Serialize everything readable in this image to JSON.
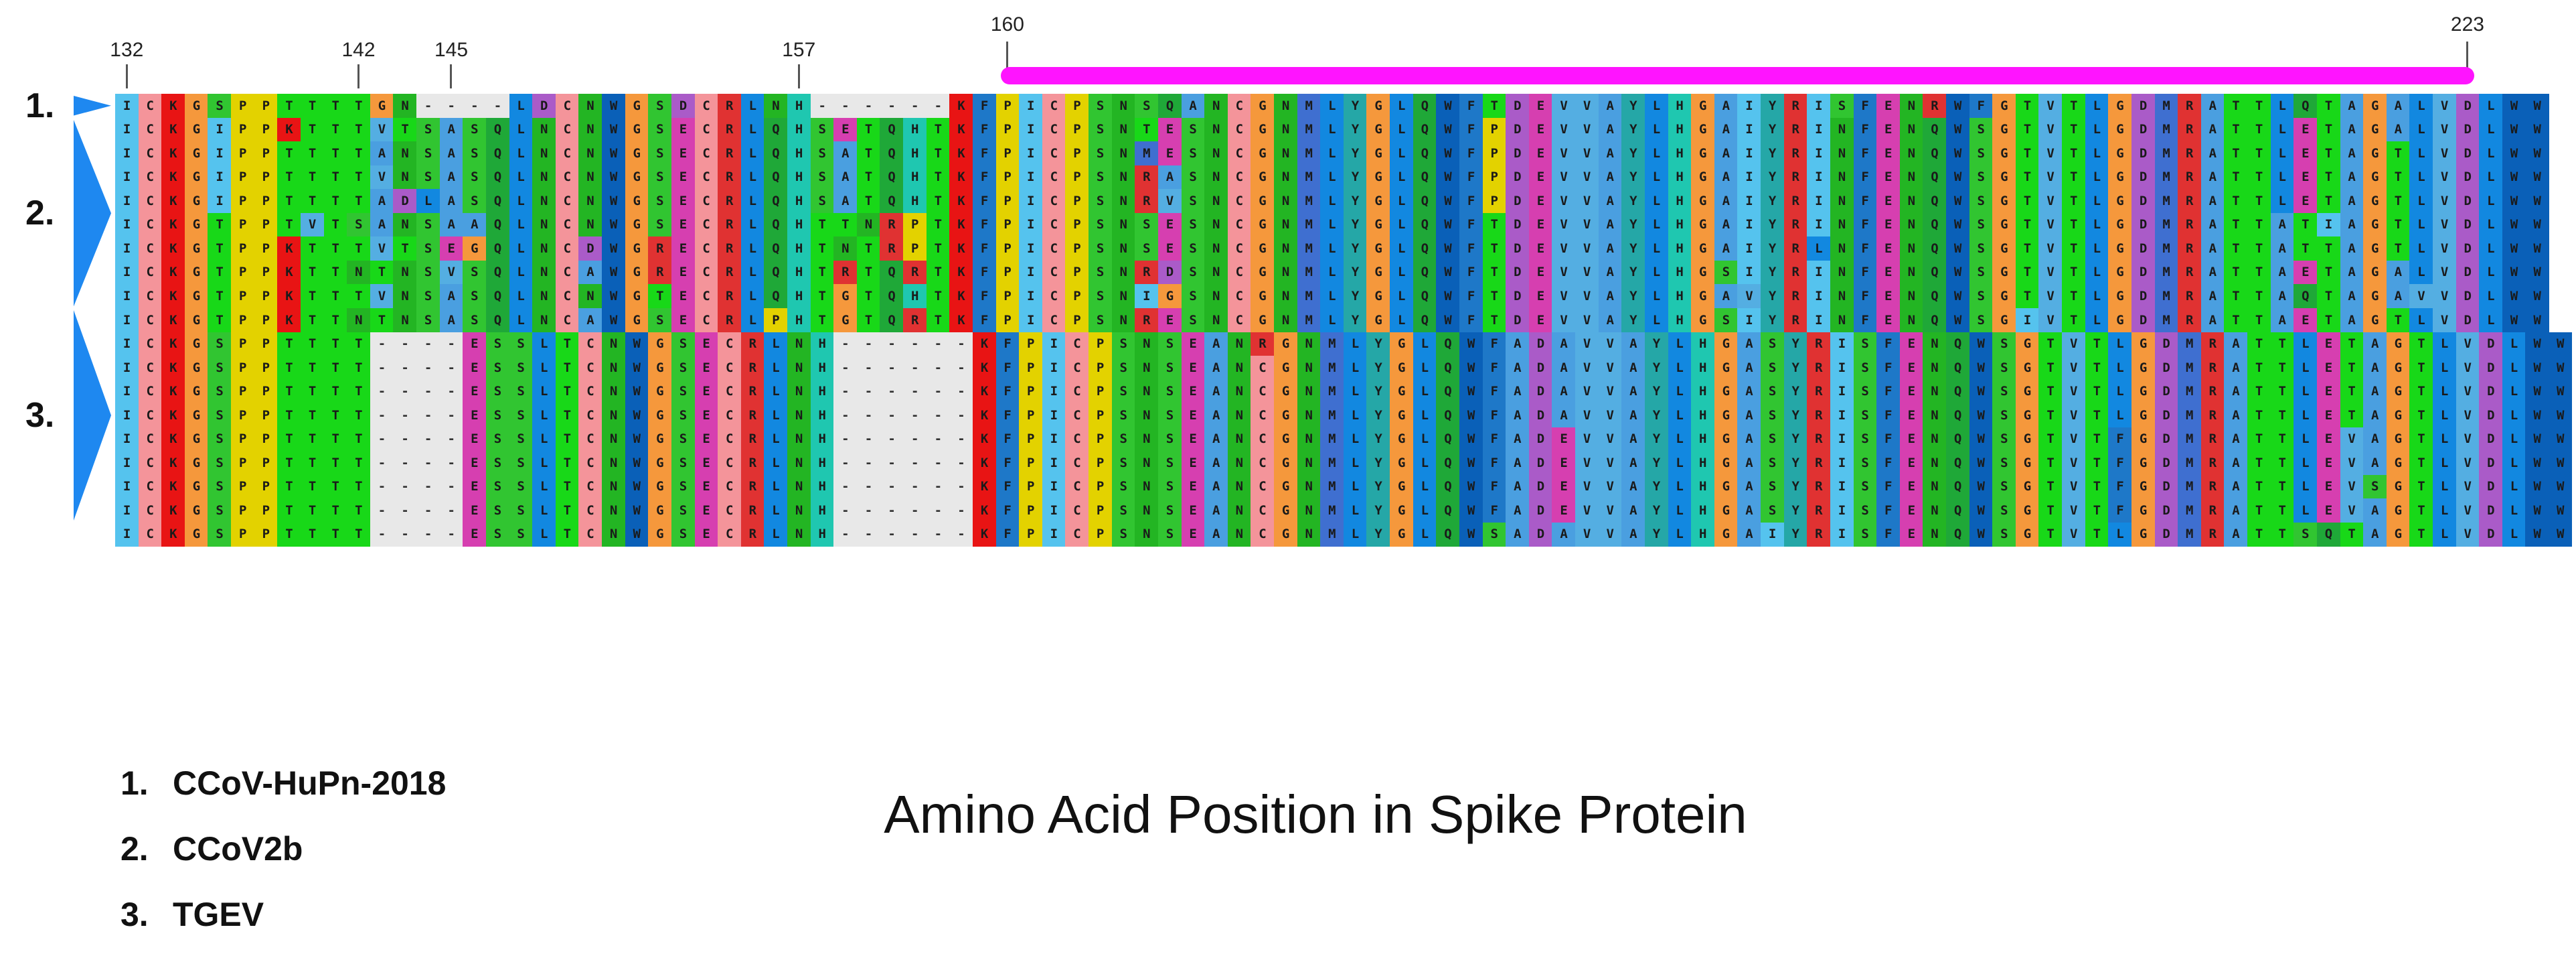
{
  "position_ticks": [
    {
      "pos": 132,
      "label": "132"
    },
    {
      "pos": 142,
      "label": "142"
    },
    {
      "pos": 145,
      "label": "145"
    },
    {
      "pos": 157,
      "label": "157"
    },
    {
      "pos": 160,
      "label": "160"
    },
    {
      "pos": 223,
      "label": "223"
    }
  ],
  "region_bar": {
    "from": 160,
    "to": 223,
    "color": "#ff14ff"
  },
  "groups": [
    {
      "label": "1.",
      "first_row": 0,
      "row_count": 1
    },
    {
      "label": "2.",
      "first_row": 1,
      "row_count": 8
    },
    {
      "label": "3.",
      "first_row": 9,
      "row_count": 9
    }
  ],
  "legend": [
    {
      "num": "1.",
      "name": "CCoV-HuPn-2018"
    },
    {
      "num": "2.",
      "name": "CCoV2b"
    },
    {
      "num": "3.",
      "name": "TGEV"
    }
  ],
  "axis_title": "Amino Acid Position in Spike Protein",
  "alignment_rows": [
    "ICKGSPPTTTTGN----LDCNWGSDCRLNH------KFPICPSNSQANCGNMLYGLQWFTDEVVAYLHGAIYRISFENRWFGTVTLGDMRATTLQTAGALVDLWW",
    "ICKGIPPKTTTVTSASQLNCNWGSECRLQHSETQHTKFPICPSNTESNCGNMLYGLQWFPDEVVAYLHGAIYRINFENQWSGTVTLGDMRATTLETAGALVDLWW",
    "ICKGIPPTTTTANSASQLNCNWGSECRLQHSATQHTKFPICPSNMESNCGNMLYGLQWFPDEVVAYLHGAIYRINFENQWSGTVTLGDMRATTLETAGTLVDLWW",
    "ICKGIPPTTTTVNSASQLNCNWGSECRLQHSATQHTKFPICPSNRASNCGNMLYGLQWFPDEVVAYLHGAIYRINFENQWSGTVTLGDMRATTLETAGTLVDLWW",
    "ICKGIPPTTTTADLASQLNCNWGSECRLQHSATQHTKFPICPSNRVSNCGNMLYGLQWFPDEVVAYLHGAIYRINFENQWSGTVTLGDMRATTLETAGTLVDLWW",
    "ICKGTPPTVTSANSAAQLNCNWGSECRLQHTTNRPTKFPICPSNSESNCGNMLYGLQWFTDEVVAYLHGAIYRINFENQWSGTVTLGDMRATTATIAGTLVDLWW",
    "ICKGTPPKTTTVTSEGQLNCDWGRECRLQHTNTRPTKFPICPSNSESNCGNMLYGLQWFTDEVVAYLHGAIYRLNFENQWSGTVTLGDMRATTATTAGTLVDLWW",
    "ICKGTPPKTTNTNSVSQLNCAWGRECRLQHTRTQRTKFPICPSNRDSNCGNMLYGLQWFTDEVVAYLHGSIYRINFENQWSGTVTLGDMRATTAETAGALVDLWW",
    "ICKGTPPKTTTVNSASQLNCNWGTECRLQHTGTQHTKFPICPSNIGSNCGNMLYGLQWFTDEVVAYLHGAVYRINFENQWSGTVTLGDMRATTAQTAGAVVDLWW",
    "ICKGTPPKTTNTNSASQLNCAWGSECRLPHTGTQRTKFPICPSNRESNCGNMLYGLQWFTDEVVAYLHGSIYRINFENQWSGIVTLGDMRATTAETAGTLVDLWW",
    "ICKGSPPTTTT----ESSLTCNWGSECRLNH------KFPICPSNSEANRGNMLYGLQWFADAVVAYLHGASYRISFENQWSGTVTLGDMRATTLETAGTLVDLWW",
    "ICKGSPPTTTT----ESSLTCNWGSECRLNH------KFPICPSNSEANCGNMLYGLQWFADAVVAYLHGASYRISFENQWSGTVTLGDMRATTLETAGTLVDLWW",
    "ICKGSPPTTTT----ESSLTCNWGSECRLNH------KFPICPSNSEANCGNMLYGLQWFADAVVAYLHGASYRISFENQWSGTVTLGDMRATTLETAGTLVDLWW",
    "ICKGSPPTTTT----ESSLTCNWGSECRLNH------KFPICPSNSEANCGNMLYGLQWFADAVVAYLHGASYRISFENQWSGTVTLGDMRATTLETAGTLVDLWW",
    "ICKGSPPTTTT----ESSLTCNWGSECRLNH------KFPICPSNSEANCGNMLYGLQWFADEVVAYLHGASYRISFENQWSGTVTFGDMRATTLEVAGTLVDLWW",
    "ICKGSPPTTTT----ESSLTCNWGSECRLNH------KFPICPSNSEANCGNMLYGLQWFADEVVAYLHGASYRISFENQWSGTVTFGDMRATTLEVAGTLVDLWW",
    "ICKGSPPTTTT----ESSLTCNWGSECRLNH------KFPICPSNSEANCGNMLYGLQWFADEVVAYLHGASYRISFENQWSGTVTFGDMRATTLEVSGTLVDLWW",
    "ICKGSPPTTTT----ESSLTCNWGSECRLNH------KFPICPSNSEANCGNMLYGLQWFADEVVAYLHGASYRISFENQWSGTVTFGDMRATTLEVAGTLVDLWW",
    "ICKGSPPTTTT----ESSLTCNWGSECRLNH------KFPICPSNSEANCGNMLYGLQWSADAVVAYLHGAIYRISFENQWSGTVTLGDMRATTSQTAGTLVDLWW"
  ],
  "residue_colors": {
    "A": "#4a9fe0",
    "C": "#f4949a",
    "D": "#aa5bc8",
    "E": "#d63fb0",
    "F": "#1e78c8",
    "G": "#f5983c",
    "H": "#1fc7b0",
    "I": "#55c3ee",
    "K": "#e81414",
    "L": "#1288e0",
    "M": "#3f6fd0",
    "N": "#23b523",
    "P": "#e3d200",
    "Q": "#1fa838",
    "R": "#e03232",
    "S": "#31c531",
    "T": "#18d818",
    "V": "#54aee2",
    "W": "#0a60b8",
    "Y": "#25a7a7",
    "-": "#e8e8e8"
  },
  "marker_color": "#1e88f0"
}
